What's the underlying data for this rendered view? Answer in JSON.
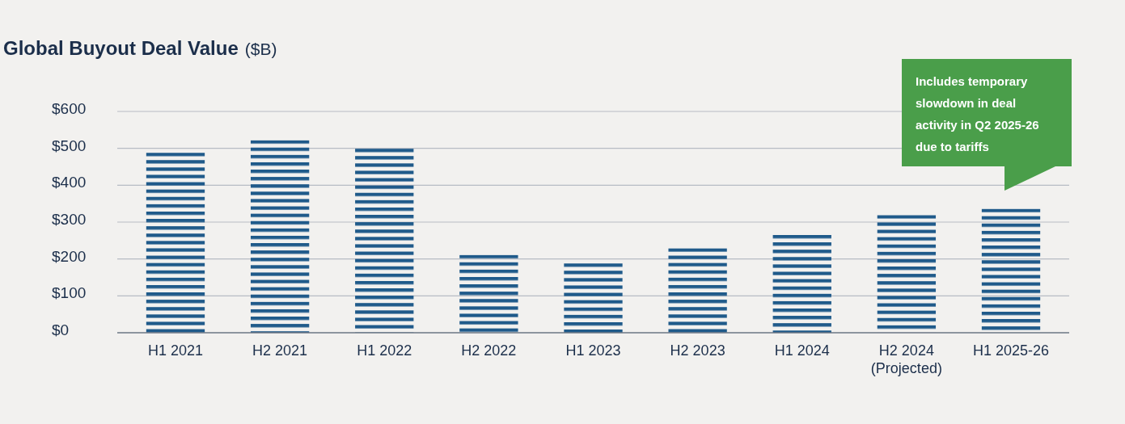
{
  "chart_data": {
    "type": "bar",
    "title": "Global Buyout Deal Value",
    "ylabel": "($B)",
    "categories": [
      "H1 2021",
      "H2 2021",
      "H1 2022",
      "H2 2022",
      "H1 2023",
      "H2 2023",
      "H1 2024",
      "H2 2024 (Projected)",
      "H1 2025-26"
    ],
    "values": [
      488,
      522,
      499,
      211,
      188,
      229,
      265,
      319,
      336
    ],
    "color": "#1f5a8a",
    "ylim": [
      0,
      600
    ],
    "yticks": [
      {
        "value": 0,
        "label": "$0"
      },
      {
        "value": 100,
        "label": "$100"
      },
      {
        "value": 200,
        "label": "$200"
      },
      {
        "value": 300,
        "label": "$300"
      },
      {
        "value": 400,
        "label": "$400"
      },
      {
        "value": 500,
        "label": "$500"
      },
      {
        "value": 600,
        "label": "$600"
      }
    ],
    "grid": "y",
    "annotations": [
      "Includes temporary slowdown in deal activity in Q2 2025-26 due to tariffs"
    ]
  }
}
